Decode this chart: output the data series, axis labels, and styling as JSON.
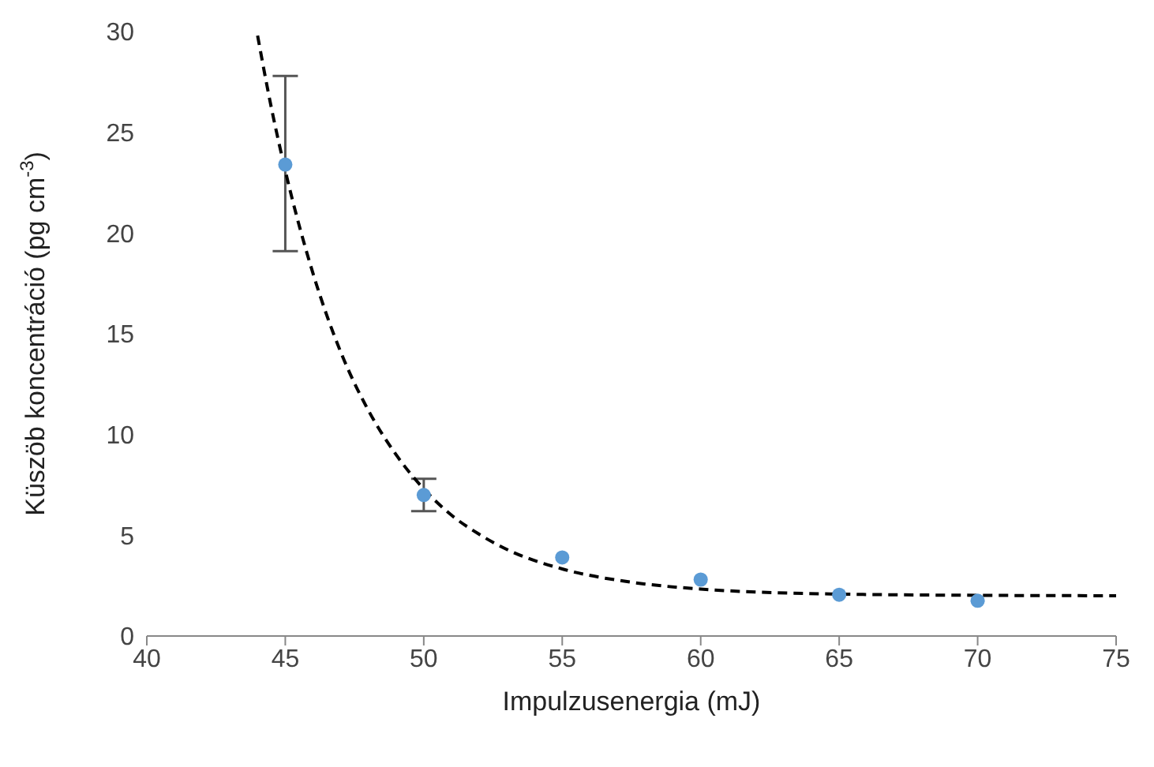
{
  "chart_data": {
    "type": "scatter",
    "xlabel": "Impulzusenergia (mJ)",
    "ylabel": "Küszöb koncentráció (pg cm$^{-3}$)",
    "xlim": [
      40,
      75
    ],
    "xticks": [
      40,
      45,
      50,
      55,
      60,
      65,
      70,
      75
    ],
    "ylim": [
      0,
      30
    ],
    "yticks": [
      0,
      5,
      10,
      15,
      20,
      25,
      30
    ],
    "grid": false,
    "series": [
      {
        "color": "#5b9bd5",
        "marker": "circle",
        "x": [
          45,
          50,
          55,
          60,
          65,
          70
        ],
        "values": [
          23.4,
          7.0,
          3.9,
          2.8,
          2.05,
          1.75
        ],
        "errors": [
          [
            19.1,
            27.8
          ],
          [
            6.2,
            7.8
          ],
          null,
          null,
          null,
          null
        ]
      },
      {
        "type": "line",
        "color": "#000000",
        "marker": "none",
        "line_style": "dashed",
        "x": [
          44,
          44.5,
          45,
          46,
          47,
          48,
          49,
          50,
          51,
          52,
          53,
          55,
          57.5,
          60,
          65,
          70,
          75
        ],
        "values": [
          29.8,
          26.2,
          23.1,
          18,
          14.1,
          11.2,
          9.0,
          7.3,
          6.0,
          5.05,
          4.3,
          3.33,
          2.67,
          2.33,
          2.08,
          2.02,
          2.0
        ]
      }
    ]
  }
}
